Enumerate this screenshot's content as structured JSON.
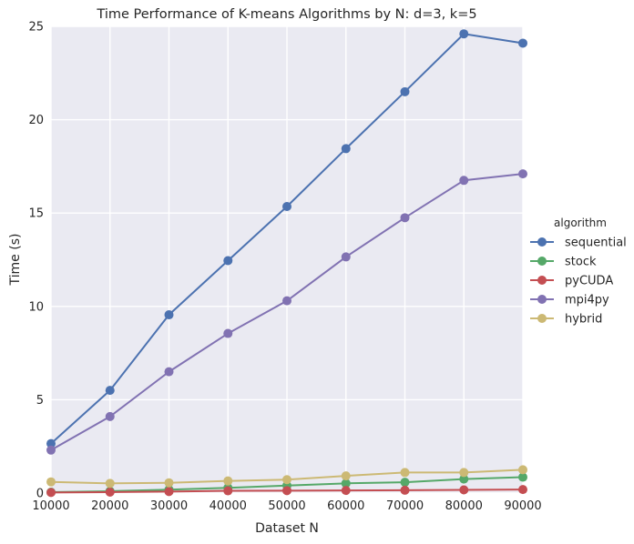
{
  "chart_data": {
    "type": "line",
    "title": "Time Performance of K-means Algorithms by N: d=3, k=5",
    "xlabel": "Dataset N",
    "ylabel": "Time (s)",
    "x": [
      10000,
      20000,
      30000,
      40000,
      50000,
      60000,
      70000,
      80000,
      90000
    ],
    "xticks": [
      "10000",
      "20000",
      "30000",
      "40000",
      "50000",
      "60000",
      "70000",
      "80000",
      "90000"
    ],
    "xlim": [
      10000,
      90000
    ],
    "yticks": [
      "0",
      "5",
      "10",
      "15",
      "20",
      "25"
    ],
    "ylim": [
      0,
      25
    ],
    "grid": true,
    "legend": {
      "title": "algorithm",
      "placement": "right-outside"
    },
    "series": [
      {
        "name": "sequential",
        "color": "#4c72b0",
        "values": [
          2.65,
          5.5,
          9.55,
          12.45,
          15.35,
          18.45,
          21.5,
          24.6,
          24.1
        ]
      },
      {
        "name": "stock",
        "color": "#55a868",
        "values": [
          0.05,
          0.1,
          0.18,
          0.28,
          0.4,
          0.52,
          0.58,
          0.75,
          0.85
        ]
      },
      {
        "name": "pyCUDA",
        "color": "#c44e52",
        "values": [
          0.03,
          0.05,
          0.08,
          0.12,
          0.13,
          0.14,
          0.15,
          0.17,
          0.19
        ]
      },
      {
        "name": "mpi4py",
        "color": "#8172b2",
        "values": [
          2.3,
          4.1,
          6.5,
          8.55,
          10.3,
          12.65,
          14.75,
          16.75,
          17.1
        ]
      },
      {
        "name": "hybrid",
        "color": "#ccb974",
        "values": [
          0.6,
          0.52,
          0.55,
          0.65,
          0.72,
          0.92,
          1.1,
          1.1,
          1.25
        ]
      }
    ],
    "colors": {
      "plot_background": "#eaeaf2",
      "grid": "#ffffff",
      "text": "#262626"
    }
  }
}
